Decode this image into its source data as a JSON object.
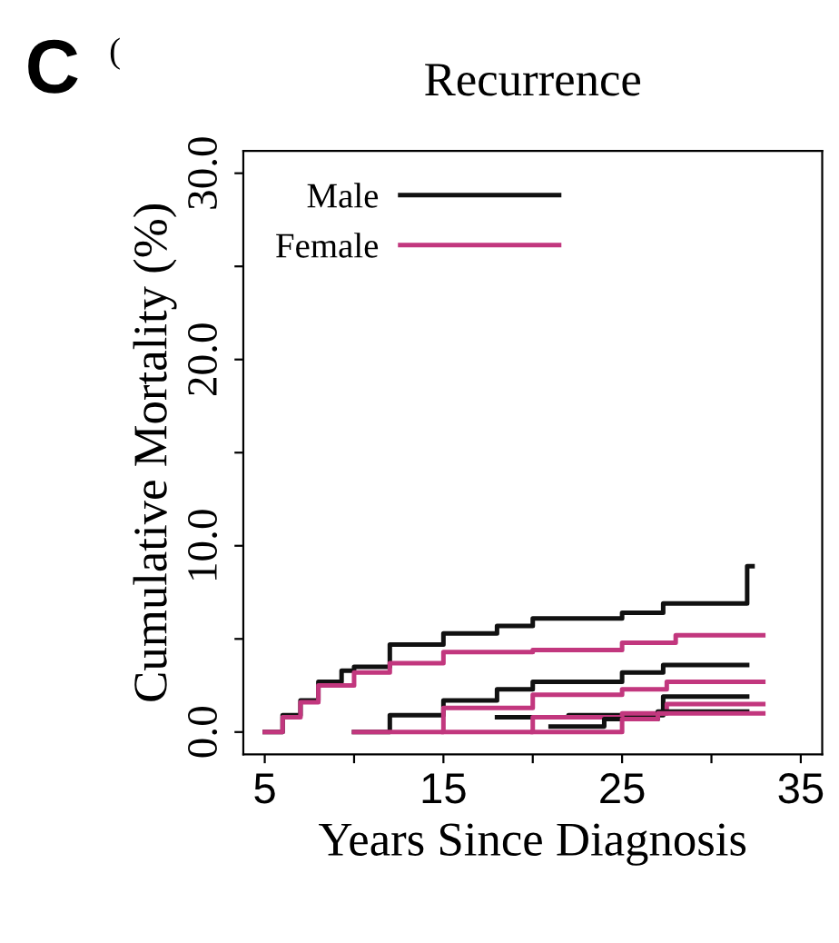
{
  "chart_data": {
    "type": "step",
    "title": "Recurrence",
    "xlabel": "Years Since Diagnosis",
    "ylabel": "Cumulative Mortality (%)",
    "annotations": [
      "C",
      "("
    ],
    "xlim": [
      3.8,
      36.2
    ],
    "xticks": [
      5,
      {
        "value": 10,
        "label": null
      },
      15,
      {
        "value": 20,
        "label": null
      },
      25,
      {
        "value": 30,
        "label": null
      },
      35
    ],
    "ylim": [
      -1.2,
      31.2
    ],
    "yticks": [
      {
        "value": 0,
        "label": "0.0"
      },
      {
        "value": 5,
        "label": null
      },
      {
        "value": 10,
        "label": "10.0"
      },
      {
        "value": 15,
        "label": null
      },
      {
        "value": 20,
        "label": "20.0"
      },
      {
        "value": 25,
        "label": null
      },
      {
        "value": 30,
        "label": "30.0"
      }
    ],
    "grid": false,
    "legend": "top left",
    "line_style": "solid",
    "marker": "none",
    "series": [
      {
        "name": "Male",
        "color": "#111111",
        "x": [
          5,
          6,
          7,
          8,
          9.3,
          10,
          12,
          15,
          18,
          20,
          25,
          27.3,
          32,
          32.3
        ],
        "values": [
          0,
          0.9,
          1.7,
          2.7,
          3.3,
          3.5,
          4.7,
          5.3,
          5.7,
          6.1,
          6.4,
          6.9,
          8.9,
          8.9
        ]
      },
      {
        "name": "Female",
        "color": "#c2377e",
        "x": [
          5,
          6,
          7,
          8,
          10,
          12,
          15,
          20,
          25,
          28,
          32.9
        ],
        "values": [
          0,
          0.8,
          1.6,
          2.5,
          3.2,
          3.7,
          4.3,
          4.4,
          4.8,
          5.2,
          5.2
        ]
      },
      {
        "color": "#111111",
        "x": [
          10,
          12,
          15,
          18,
          20,
          25,
          27.3,
          32
        ],
        "values": [
          0,
          0.9,
          1.7,
          2.3,
          2.7,
          3.2,
          3.6,
          3.6
        ]
      },
      {
        "color": "#c2377e",
        "x": [
          10,
          15,
          20,
          25,
          27.5,
          32.9
        ],
        "values": [
          0,
          1.3,
          2.0,
          2.3,
          2.7,
          2.7
        ]
      },
      {
        "color": "#111111",
        "x": [
          18,
          22,
          27.3,
          32
        ],
        "values": [
          0.8,
          0.9,
          1.9,
          1.9
        ]
      },
      {
        "color": "#c2377e",
        "x": [
          15,
          20,
          25,
          27.5,
          32.9
        ],
        "values": [
          0,
          0.8,
          1.0,
          1.5,
          1.5
        ]
      },
      {
        "color": "#111111",
        "x": [
          21,
          24,
          27,
          32
        ],
        "values": [
          0.3,
          0.7,
          1.1,
          1.1
        ]
      },
      {
        "color": "#c2377e",
        "x": [
          20,
          25,
          27,
          32.9
        ],
        "values": [
          0,
          0.7,
          1.0,
          1.0
        ]
      }
    ]
  }
}
